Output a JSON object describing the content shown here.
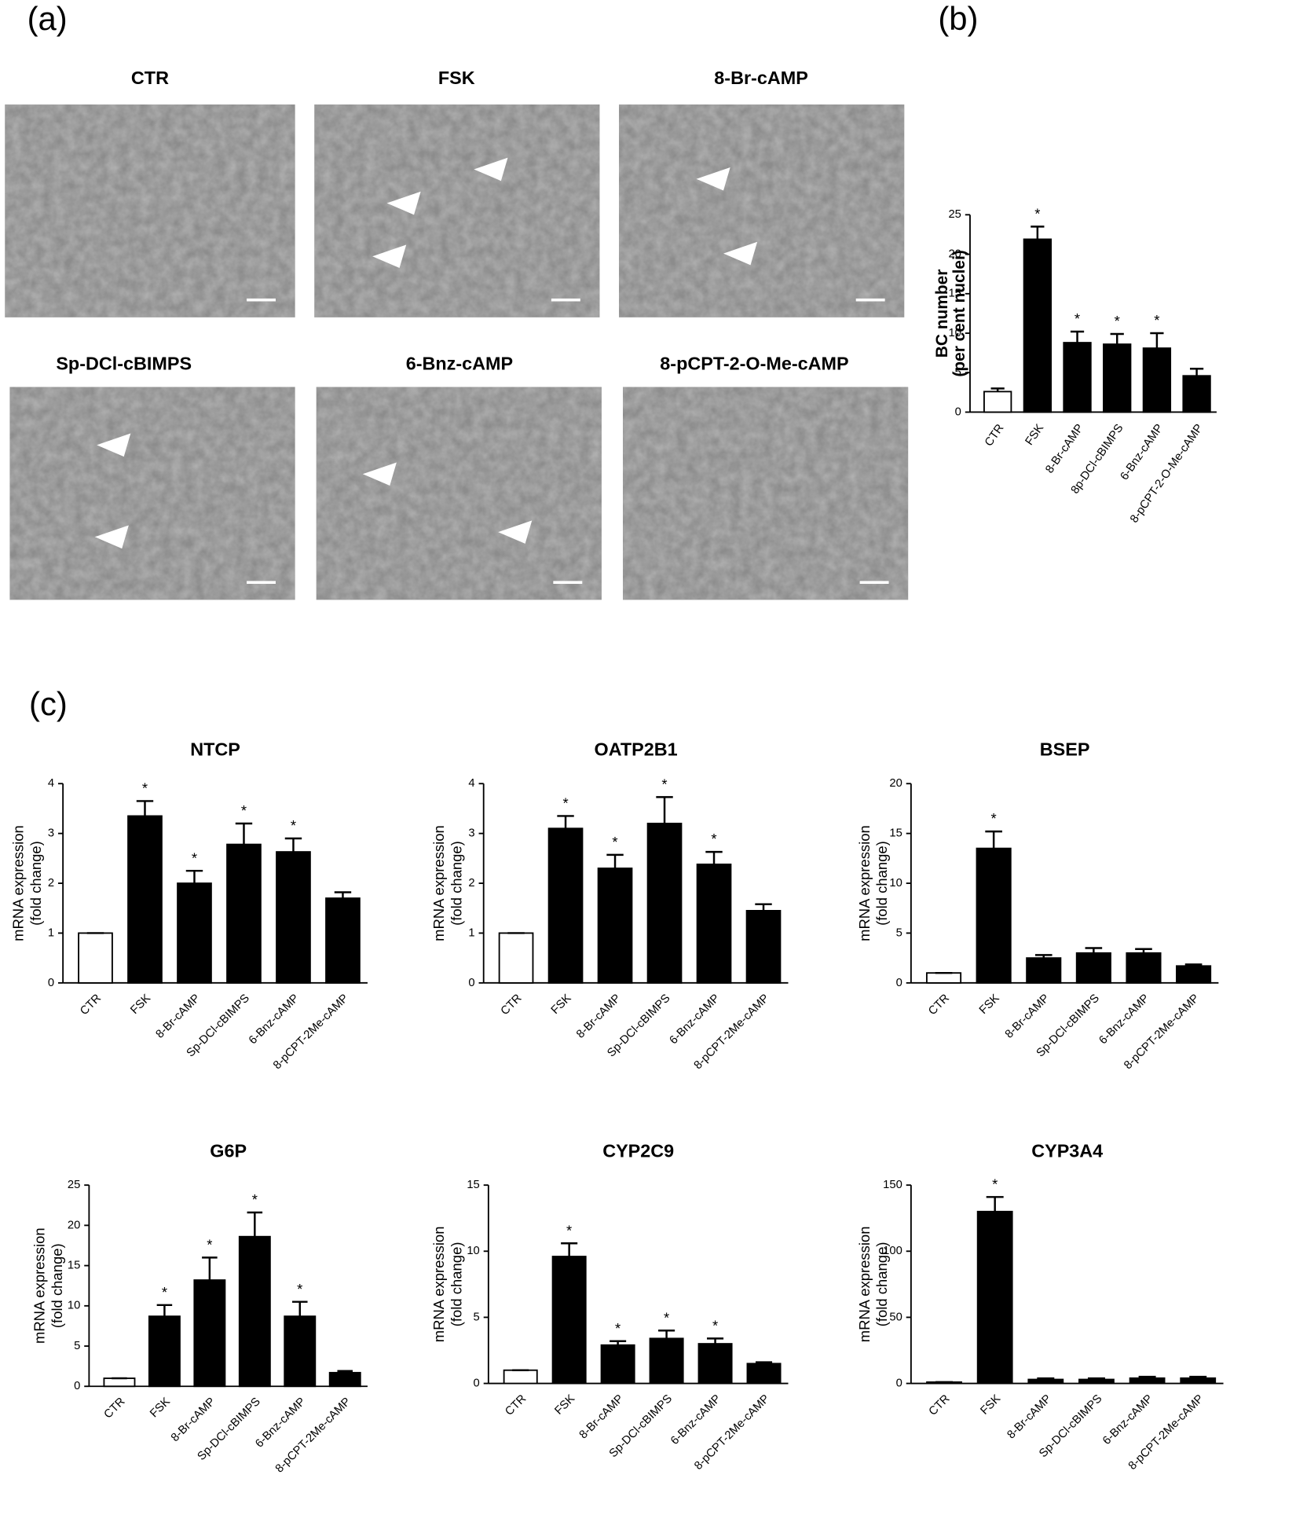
{
  "panels": {
    "a": "(a)",
    "b": "(b)",
    "c": "(c)"
  },
  "images": [
    {
      "label": "CTR"
    },
    {
      "label": "FSK"
    },
    {
      "label": "8-Br-cAMP"
    },
    {
      "label": "Sp-DCl-cBIMPS"
    },
    {
      "label": "6-Bnz-cAMP"
    },
    {
      "label": "8-pCPT-2-O-Me-cAMP"
    }
  ],
  "chart_data": [
    {
      "type": "bar",
      "ylabel": [
        "BC number",
        "(per cent nuclei)"
      ],
      "categories": [
        "CTR",
        "FSK",
        "8-Br-cAMP",
        "8p-DCl-cBIMPS",
        "6-Bnz-cAMP",
        "8-pCPT-2-O-Me-cAMP"
      ],
      "values": [
        2.6,
        21.9,
        8.8,
        8.6,
        8.1,
        4.6
      ],
      "errors": [
        0.4,
        1.6,
        1.4,
        1.3,
        1.9,
        0.9
      ],
      "significant": [
        false,
        true,
        true,
        true,
        true,
        false
      ],
      "significance_mark": "*",
      "bar_colors": [
        "#ffffff",
        "#000000",
        "#000000",
        "#000000",
        "#000000",
        "#000000"
      ],
      "ylim": [
        0,
        25
      ],
      "yticks": [
        0,
        5,
        10,
        15,
        20,
        25
      ]
    },
    {
      "type": "bar",
      "title": "NTCP",
      "ylabel": [
        "mRNA expression",
        "(fold change)"
      ],
      "categories": [
        "CTR",
        "FSK",
        "8-Br-cAMP",
        "Sp-DCl-cBIMPS",
        "6-Bnz-cAMP",
        "8-pCPT-2Me-cAMP"
      ],
      "values": [
        1.0,
        3.35,
        2.0,
        2.78,
        2.63,
        1.7
      ],
      "errors": [
        0,
        0.3,
        0.25,
        0.42,
        0.27,
        0.12
      ],
      "significant": [
        false,
        true,
        true,
        true,
        true,
        false
      ],
      "significance_mark": "*",
      "bar_colors": [
        "#ffffff",
        "#000000",
        "#000000",
        "#000000",
        "#000000",
        "#000000"
      ],
      "ylim": [
        0,
        4
      ],
      "yticks": [
        0,
        1,
        2,
        3,
        4
      ]
    },
    {
      "type": "bar",
      "title": "OATP2B1",
      "ylabel": [
        "mRNA expression",
        "(fold change)"
      ],
      "categories": [
        "CTR",
        "FSK",
        "8-Br-cAMP",
        "Sp-DCl-cBIMPS",
        "6-Bnz-cAMP",
        "8-pCPT-2Me-cAMP"
      ],
      "values": [
        1.0,
        3.1,
        2.3,
        3.2,
        2.38,
        1.45
      ],
      "errors": [
        0,
        0.25,
        0.27,
        0.53,
        0.25,
        0.13
      ],
      "significant": [
        false,
        true,
        true,
        true,
        true,
        false
      ],
      "significance_mark": "*",
      "bar_colors": [
        "#ffffff",
        "#000000",
        "#000000",
        "#000000",
        "#000000",
        "#000000"
      ],
      "ylim": [
        0,
        4
      ],
      "yticks": [
        0,
        1,
        2,
        3,
        4
      ]
    },
    {
      "type": "bar",
      "title": "BSEP",
      "ylabel": [
        "mRNA expression",
        "(fold change)"
      ],
      "categories": [
        "CTR",
        "FSK",
        "8-Br-cAMP",
        "Sp-DCl-cBIMPS",
        "6-Bnz-cAMP",
        "8-pCPT-2Me-cAMP"
      ],
      "values": [
        1.0,
        13.5,
        2.5,
        3.0,
        3.0,
        1.7
      ],
      "errors": [
        0,
        1.7,
        0.3,
        0.5,
        0.4,
        0.15
      ],
      "significant": [
        false,
        true,
        false,
        false,
        false,
        false
      ],
      "significance_mark": "*",
      "bar_colors": [
        "#ffffff",
        "#000000",
        "#000000",
        "#000000",
        "#000000",
        "#000000"
      ],
      "ylim": [
        0,
        20
      ],
      "yticks": [
        0,
        5,
        10,
        15,
        20
      ]
    },
    {
      "type": "bar",
      "title": "G6P",
      "ylabel": [
        "mRNA expression",
        "(fold change)"
      ],
      "categories": [
        "CTR",
        "FSK",
        "8-Br-cAMP",
        "Sp-DCl-cBIMPS",
        "6-Bnz-cAMP",
        "8-pCPT-2Me-cAMP"
      ],
      "values": [
        1.0,
        8.7,
        13.2,
        18.6,
        8.7,
        1.7
      ],
      "errors": [
        0,
        1.4,
        2.8,
        3.0,
        1.8,
        0.2
      ],
      "significant": [
        false,
        true,
        true,
        true,
        true,
        false
      ],
      "significance_mark": "*",
      "bar_colors": [
        "#ffffff",
        "#000000",
        "#000000",
        "#000000",
        "#000000",
        "#000000"
      ],
      "ylim": [
        0,
        25
      ],
      "yticks": [
        0,
        5,
        10,
        15,
        20,
        25
      ]
    },
    {
      "type": "bar",
      "title": "CYP2C9",
      "ylabel": [
        "mRNA expression",
        "(fold change)"
      ],
      "categories": [
        "CTR",
        "FSK",
        "8-Br-cAMP",
        "Sp-DCl-cBIMPS",
        "6-Bnz-cAMP",
        "8-pCPT-2Me-cAMP"
      ],
      "values": [
        1.0,
        9.6,
        2.9,
        3.4,
        3.0,
        1.5
      ],
      "errors": [
        0,
        1.0,
        0.3,
        0.6,
        0.4,
        0.1
      ],
      "significant": [
        false,
        true,
        true,
        true,
        true,
        false
      ],
      "significance_mark": "*",
      "bar_colors": [
        "#ffffff",
        "#000000",
        "#000000",
        "#000000",
        "#000000",
        "#000000"
      ],
      "ylim": [
        0,
        15
      ],
      "yticks": [
        0,
        5,
        10,
        15
      ]
    },
    {
      "type": "bar",
      "title": "CYP3A4",
      "ylabel": [
        "mRNA expression",
        "(fold change)"
      ],
      "categories": [
        "CTR",
        "FSK",
        "8-Br-cAMP",
        "Sp-DCl-cBIMPS",
        "6-Bnz-cAMP",
        "8-pCPT-2Me-cAMP"
      ],
      "values": [
        1.0,
        130,
        3.0,
        3.0,
        4.0,
        4.0
      ],
      "errors": [
        0,
        11,
        0.8,
        0.8,
        1,
        1
      ],
      "significant": [
        false,
        true,
        false,
        false,
        false,
        false
      ],
      "significance_mark": "*",
      "bar_colors": [
        "#ffffff",
        "#000000",
        "#000000",
        "#000000",
        "#000000",
        "#000000"
      ],
      "ylim": [
        0,
        150
      ],
      "yticks": [
        0,
        50,
        100,
        150
      ]
    }
  ]
}
